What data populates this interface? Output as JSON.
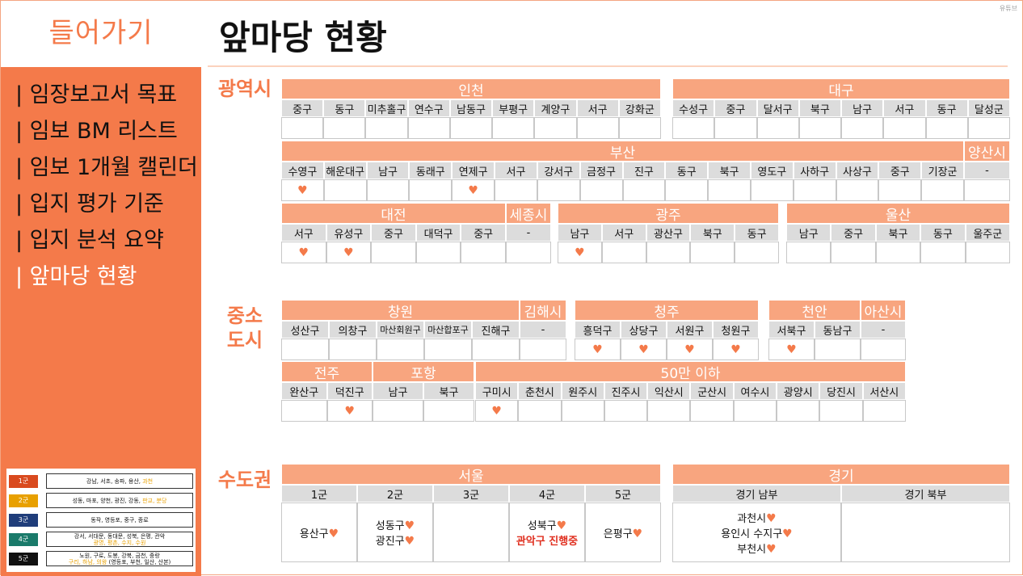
{
  "sidebar": {
    "title": "들어가기",
    "items": [
      "| 임장보고서 목표",
      "| 임보 BM 리스트",
      "| 임보 1개월 캘린더",
      "| 입지 평가 기준",
      "| 입지 분석 요약",
      "| 앞마당 현황"
    ],
    "legend": [
      {
        "tag": "1군",
        "color": "#d94a1e",
        "line1": "강남, 서초, 송파, 용산, ",
        "line1_hl": "과천",
        "line2": "",
        "line2_hl": ""
      },
      {
        "tag": "2군",
        "color": "#e8a000",
        "line1": "성동, 마포, 양천, 광진, 강동, ",
        "line1_hl": "판교, 분당",
        "line2": "",
        "line2_hl": ""
      },
      {
        "tag": "3군",
        "color": "#1f3d7a",
        "line1": "동작, 영등포, 중구, 종로",
        "line1_hl": "",
        "line2": "",
        "line2_hl": ""
      },
      {
        "tag": "4군",
        "color": "#1a7a6a",
        "line1": "강서, 서대문, 동대문, 성북, 은평, 관악",
        "line1_hl": "",
        "line2": "",
        "line2_hl": "광명, 평촌, 수지, 수원"
      },
      {
        "tag": "5군",
        "color": "#111111",
        "line1": "노원, 구로, 도봉, 강북, 금천, 중랑",
        "line1_hl": "",
        "line2": "(영등포, 부천, 일산, 산본)",
        "line2_hl": "구리, 하남, 의왕"
      }
    ]
  },
  "page": {
    "title": "앞마당 현황",
    "watermark": "유튜브"
  },
  "categories": {
    "metro": "광역시",
    "mid": "중소\n도시",
    "capital": "수도권"
  },
  "heart": "♥",
  "incheon": {
    "name": "인천",
    "districts": [
      "중구",
      "동구",
      "미추홀구",
      "연수구",
      "남동구",
      "부평구",
      "계양구",
      "서구",
      "강화군"
    ],
    "visited": [
      false,
      false,
      false,
      false,
      false,
      false,
      false,
      false,
      false
    ]
  },
  "daegu": {
    "name": "대구",
    "districts": [
      "수성구",
      "중구",
      "달서구",
      "북구",
      "남구",
      "서구",
      "동구",
      "달성군"
    ],
    "visited": [
      false,
      false,
      false,
      false,
      false,
      false,
      false,
      false
    ]
  },
  "busan": {
    "name": "부산",
    "districts": [
      "수영구",
      "해운대구",
      "남구",
      "동래구",
      "연제구",
      "서구",
      "강서구",
      "금정구",
      "진구",
      "동구",
      "북구",
      "영도구",
      "사하구",
      "사상구",
      "중구",
      "기장군"
    ],
    "visited": [
      true,
      false,
      false,
      false,
      true,
      false,
      false,
      false,
      false,
      false,
      false,
      false,
      false,
      false,
      false,
      false
    ]
  },
  "yangsan": {
    "name": "양산시",
    "districts": [
      "-"
    ],
    "visited": [
      false
    ]
  },
  "daejeon": {
    "name": "대전",
    "districts": [
      "서구",
      "유성구",
      "중구",
      "대덕구",
      "중구"
    ],
    "visited": [
      true,
      true,
      false,
      false,
      false
    ]
  },
  "sejong": {
    "name": "세종시",
    "districts": [
      "-"
    ],
    "visited": [
      false
    ]
  },
  "gwangju": {
    "name": "광주",
    "districts": [
      "남구",
      "서구",
      "광산구",
      "북구",
      "동구"
    ],
    "visited": [
      true,
      false,
      false,
      false,
      false
    ]
  },
  "ulsan": {
    "name": "울산",
    "districts": [
      "남구",
      "중구",
      "북구",
      "동구",
      "울주군"
    ],
    "visited": [
      false,
      false,
      false,
      false,
      false
    ]
  },
  "changwon": {
    "name": "창원",
    "districts": [
      "성산구",
      "의창구",
      "마산회원구",
      "마산합포구",
      "진해구"
    ],
    "visited": [
      false,
      false,
      false,
      false,
      false
    ]
  },
  "gimhae": {
    "name": "김해시",
    "districts": [
      "-"
    ],
    "visited": [
      false
    ]
  },
  "cheongju": {
    "name": "청주",
    "districts": [
      "흥덕구",
      "상당구",
      "서원구",
      "청원구"
    ],
    "visited": [
      true,
      true,
      true,
      true
    ]
  },
  "cheonan": {
    "name": "천안",
    "districts": [
      "서북구",
      "동남구"
    ],
    "visited": [
      true,
      false
    ]
  },
  "asan": {
    "name": "아산시",
    "districts": [
      "-"
    ],
    "visited": [
      false
    ]
  },
  "jeonju": {
    "name": "전주",
    "districts": [
      "완산구",
      "덕진구"
    ],
    "visited": [
      false,
      true
    ]
  },
  "pohang": {
    "name": "포항",
    "districts": [
      "남구",
      "북구"
    ],
    "visited": [
      false,
      false
    ]
  },
  "under50": {
    "name": "50만 이하",
    "districts": [
      "구미시",
      "춘천시",
      "원주시",
      "진주시",
      "익산시",
      "군산시",
      "여수시",
      "광양시",
      "당진시",
      "서산시"
    ],
    "visited": [
      true,
      false,
      false,
      false,
      false,
      false,
      false,
      false,
      false,
      false
    ]
  },
  "seoul": {
    "name": "서울",
    "groups": [
      "1군",
      "2군",
      "3군",
      "4군",
      "5군"
    ],
    "g1": [
      "용산구"
    ],
    "g2": [
      "성동구",
      "광진구"
    ],
    "g4": [
      "성북구"
    ],
    "g4_note": "관악구 진행중",
    "g5": [
      "은평구"
    ]
  },
  "gyeonggi": {
    "name": "경기",
    "groups": [
      "경기 남부",
      "경기 북부"
    ],
    "south": [
      "과천시",
      "용인시 수지구",
      "부천시"
    ]
  }
}
